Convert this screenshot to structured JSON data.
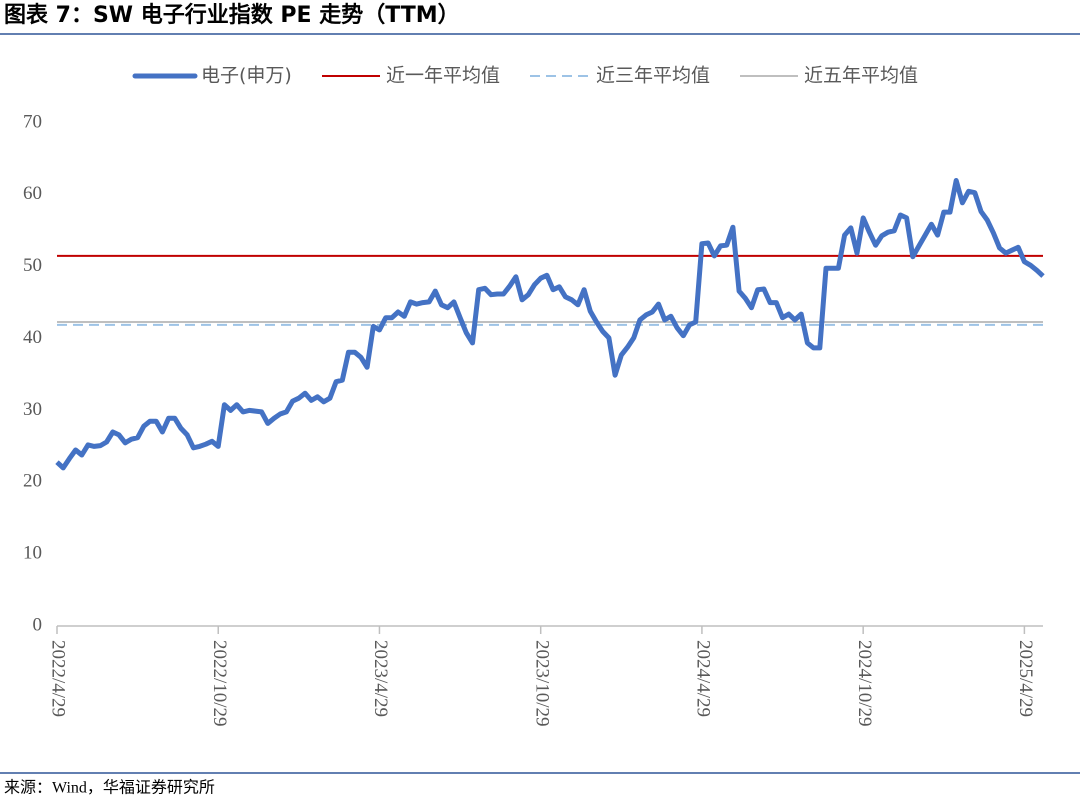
{
  "chart_data": {
    "type": "line",
    "title": "图表 7：SW 电子行业指数 PE 走势（TTM）",
    "source": "来源：Wind，华福证券研究所",
    "categories": [
      "2022/4/29",
      null,
      null,
      null,
      null,
      null,
      null,
      null,
      null,
      null,
      null,
      null,
      null,
      null,
      null,
      null,
      null,
      null,
      null,
      null,
      null,
      null,
      null,
      null,
      null,
      null,
      "2022/10/29",
      null,
      null,
      null,
      null,
      null,
      null,
      null,
      null,
      null,
      null,
      null,
      null,
      null,
      null,
      null,
      null,
      null,
      null,
      null,
      null,
      null,
      null,
      null,
      null,
      null,
      "2023/4/29",
      null,
      null,
      null,
      null,
      null,
      null,
      null,
      null,
      null,
      null,
      null,
      null,
      null,
      null,
      null,
      null,
      null,
      null,
      null,
      null,
      null,
      null,
      null,
      null,
      null,
      "2023/10/29",
      null,
      null,
      null,
      null,
      null,
      null,
      null,
      null,
      null,
      null,
      null,
      null,
      null,
      null,
      null,
      null,
      null,
      null,
      null,
      null,
      null,
      null,
      null,
      null,
      null,
      "2024/4/29",
      null,
      null,
      null,
      null,
      null,
      null,
      null,
      null,
      null,
      null,
      null,
      null,
      null,
      null,
      null,
      null,
      null,
      null,
      null,
      null,
      null,
      null,
      null,
      null,
      null,
      "2024/10/29",
      null,
      null,
      null,
      null,
      null,
      null,
      null,
      null,
      null,
      null,
      null,
      null,
      null,
      null,
      null,
      null,
      null,
      null,
      null,
      null,
      null,
      null,
      null,
      null,
      null,
      "2025/4/29",
      null,
      null,
      null
    ],
    "series": [
      {
        "name": "电子(申万)",
        "color": "#4472c4",
        "values": [
          22.8,
          22,
          23.3,
          24.5,
          23.8,
          25.2,
          25,
          25.1,
          25.6,
          27,
          26.6,
          25.5,
          26,
          26.2,
          27.8,
          28.5,
          28.5,
          27,
          28.9,
          28.9,
          27.5,
          26.6,
          24.8,
          25,
          25.3,
          25.7,
          25,
          30.8,
          30,
          30.8,
          29.8,
          30,
          29.9,
          29.8,
          28.2,
          28.9,
          29.5,
          29.8,
          31.3,
          31.7,
          32.4,
          31.4,
          31.9,
          31.2,
          31.7,
          34,
          34.2,
          38.1,
          38.1,
          37.4,
          36,
          41.7,
          41.2,
          42.9,
          42.9,
          43.7,
          43.1,
          45.1,
          44.8,
          45,
          45.1,
          46.6,
          44.7,
          44.3,
          45.1,
          42.9,
          40.8,
          39.4,
          46.8,
          47,
          46.1,
          46.2,
          46.2,
          47.3,
          48.6,
          45.4,
          46.1,
          47.5,
          48.4,
          48.8,
          46.8,
          47.2,
          45.8,
          45.4,
          44.7,
          46.8,
          43.8,
          42.3,
          41,
          40.1,
          34.9,
          37.7,
          38.8,
          40.1,
          42.6,
          43.3,
          43.7,
          44.8,
          42.6,
          43.1,
          41.5,
          40.4,
          41.9,
          42.3,
          53.2,
          53.3,
          51.5,
          52.9,
          53,
          55.5,
          46.6,
          45.6,
          44.3,
          46.8,
          46.9,
          45,
          45,
          42.9,
          43.4,
          42.6,
          43.4,
          39.4,
          38.7,
          38.7,
          49.8,
          49.8,
          49.8,
          54.4,
          55.4,
          51.9,
          56.8,
          54.8,
          53,
          54.3,
          54.8,
          55,
          57.2,
          56.8,
          51.4,
          52.9,
          54.4,
          55.9,
          54.4,
          57.6,
          57.6,
          62,
          58.9,
          60.5,
          60.3,
          57.7,
          56.5,
          54.7,
          52.6,
          51.9,
          52.3,
          52.7,
          50.7,
          50.2,
          49.5,
          48.7
        ]
      },
      {
        "name": "近一年平均值",
        "color": "#c00000",
        "value": 51.5
      },
      {
        "name": "近三年平均值",
        "color": "#9dc3e6",
        "value": 41.9,
        "dashed": true
      },
      {
        "name": "近五年平均值",
        "color": "#bfbfbf",
        "value": 42.3
      }
    ],
    "ylim": [
      0,
      70
    ],
    "yticks": [
      0,
      10,
      20,
      30,
      40,
      50,
      60,
      70
    ]
  }
}
